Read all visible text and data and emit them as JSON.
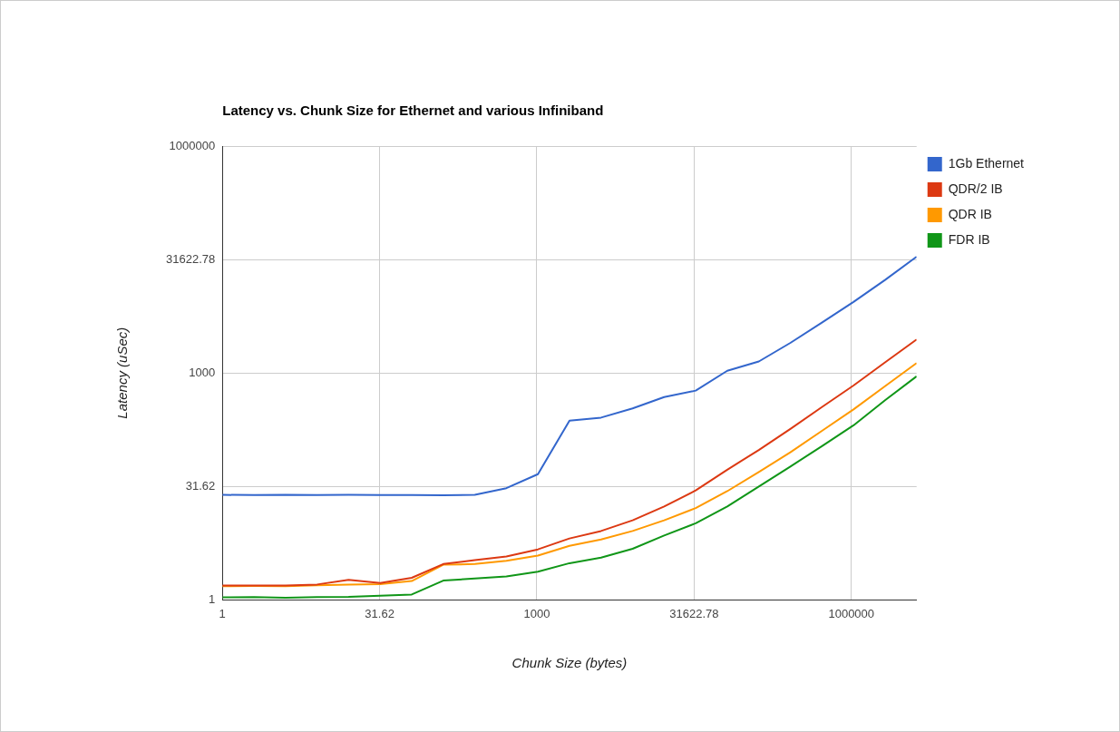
{
  "chart_data": {
    "type": "line",
    "title": "Latency vs. Chunk Size for Ethernet and various Infiniband",
    "xlabel": "Chunk Size (bytes)",
    "ylabel": "Latency (uSec)",
    "log": "xy",
    "grid": true,
    "legend": "top right",
    "marker": "none",
    "line_style": "solid",
    "x": [
      1,
      2,
      4,
      8,
      16,
      32,
      64,
      128,
      256,
      512,
      1024,
      2048,
      4096,
      8192,
      16384,
      32768,
      65536,
      131072,
      262144,
      524288,
      1048576,
      2097152,
      4194304
    ],
    "xlim": [
      1,
      4194304
    ],
    "ylim": [
      1,
      1000000
    ],
    "xticks": [
      1,
      {
        "value": 31.6227766,
        "label": "31.62"
      },
      1000,
      {
        "value": 31622.7766,
        "label": "31622.78"
      },
      1000000
    ],
    "yticks": [
      1,
      {
        "value": 31.6227766,
        "label": "31.62"
      },
      1000,
      {
        "value": 31622.7766,
        "label": "31622.78"
      },
      1000000
    ],
    "series": [
      {
        "name": "1Gb Ethernet",
        "color": "#3366cc",
        "values": [
          24.5,
          24.3,
          24.6,
          24.3,
          24.5,
          24.3,
          24.4,
          24.2,
          24.5,
          30,
          46,
          235,
          257,
          340,
          480,
          585,
          1070,
          1420,
          2500,
          4630,
          8700,
          17000,
          34400
        ]
      },
      {
        "name": "QDR/2 IB",
        "color": "#dc3912",
        "values": [
          1.55,
          1.55,
          1.55,
          1.6,
          1.84,
          1.67,
          1.96,
          2.98,
          3.36,
          3.76,
          4.66,
          6.5,
          8.15,
          11.3,
          17.2,
          28,
          52.7,
          96,
          182,
          355,
          684,
          1380,
          2770
        ]
      },
      {
        "name": "QDR IB",
        "color": "#ff9900",
        "values": [
          1.52,
          1.53,
          1.52,
          1.56,
          1.6,
          1.62,
          1.78,
          2.92,
          2.98,
          3.3,
          3.86,
          5.2,
          6.3,
          8.15,
          11.3,
          16.4,
          27.4,
          49,
          89.5,
          172,
          330,
          670,
          1350
        ]
      },
      {
        "name": "FDR IB",
        "color": "#109618",
        "values": [
          1.08,
          1.09,
          1.07,
          1.09,
          1.1,
          1.14,
          1.18,
          1.8,
          1.92,
          2.05,
          2.36,
          3.06,
          3.62,
          4.75,
          7.1,
          10.3,
          17.2,
          31.5,
          58,
          108,
          203,
          437,
          904
        ]
      }
    ]
  }
}
